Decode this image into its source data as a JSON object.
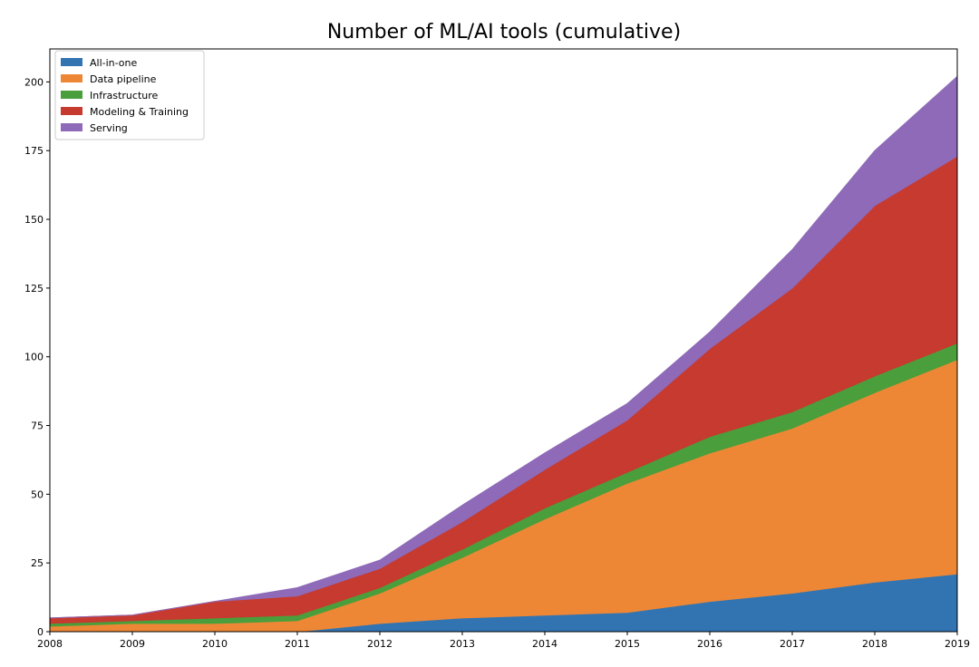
{
  "chart_data": {
    "type": "area",
    "stacked": true,
    "title": "Number of ML/AI tools (cumulative)",
    "xlabel": "",
    "ylabel": "",
    "x": [
      2008,
      2009,
      2010,
      2011,
      2012,
      2013,
      2014,
      2015,
      2016,
      2017,
      2018,
      2019
    ],
    "xlim": [
      2008,
      2019
    ],
    "ylim": [
      0,
      212
    ],
    "yticks": [
      0,
      25,
      50,
      75,
      100,
      125,
      150,
      175,
      200
    ],
    "legend_position": "top-left",
    "grid": false,
    "series": [
      {
        "name": "All-in-one",
        "color": "#3274b2",
        "values": [
          0,
          0,
          0,
          0,
          3,
          5,
          6,
          7,
          11,
          14,
          18,
          21
        ]
      },
      {
        "name": "Data pipeline",
        "color": "#ee8735",
        "values": [
          2,
          3,
          3,
          4,
          11,
          22,
          35,
          47,
          54,
          60,
          69,
          78
        ]
      },
      {
        "name": "Infrastructure",
        "color": "#4a9e3b",
        "values": [
          1,
          1,
          2,
          2,
          2,
          3,
          4,
          4,
          6,
          6,
          6,
          6
        ]
      },
      {
        "name": "Modeling & Training",
        "color": "#c63a2f",
        "values": [
          2,
          2,
          6,
          7,
          7,
          10,
          14,
          19,
          32,
          45,
          62,
          68
        ]
      },
      {
        "name": "Serving",
        "color": "#8e6ab8",
        "values": [
          0,
          0,
          0,
          3,
          3,
          6,
          6,
          6,
          6,
          14,
          20,
          29
        ]
      }
    ]
  }
}
